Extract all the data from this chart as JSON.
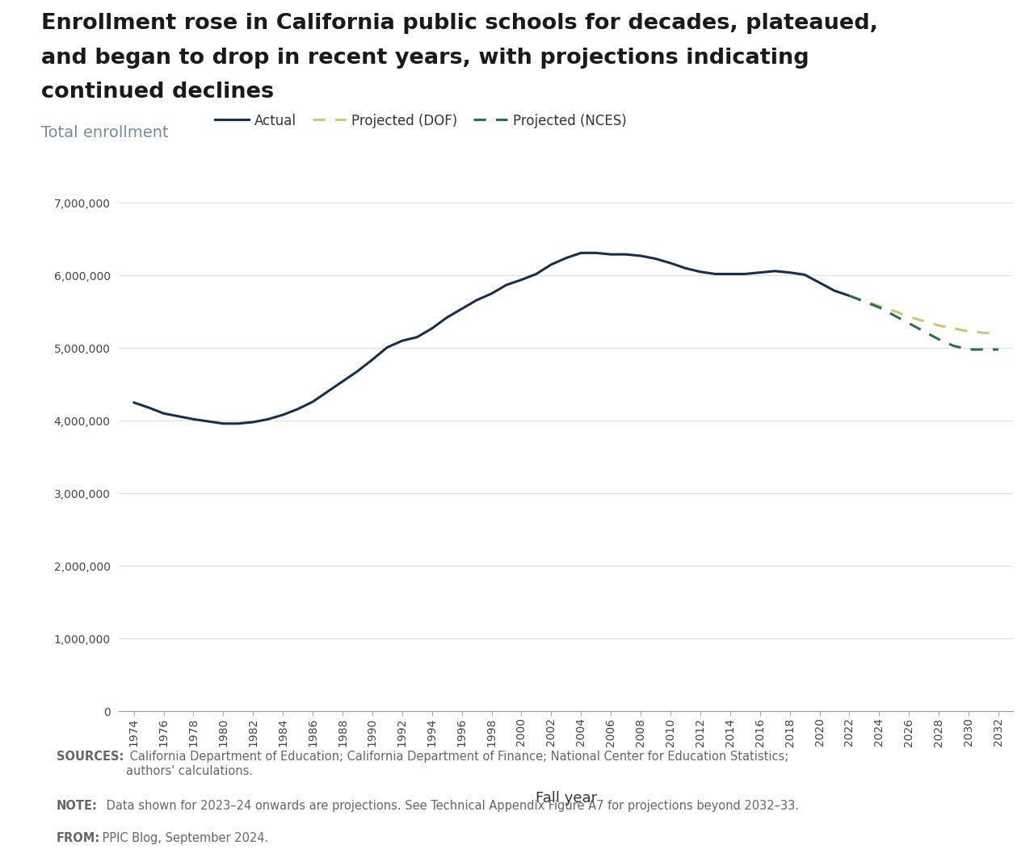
{
  "title_line1": "Enrollment rose in California public schools for decades, plateaued,",
  "title_line2": "and began to drop in recent years, with projections indicating",
  "title_line3": "continued declines",
  "subtitle": "Total enrollment",
  "xlabel": "Fall year",
  "title_color": "#1a1a1a",
  "subtitle_color": "#7a8a99",
  "background_color": "#ffffff",
  "footer_bg_color": "#e8e8e8",
  "actual_color": "#1a2e4a",
  "dof_color": "#c8c87a",
  "nces_color": "#2d6e4e",
  "actual_years": [
    1974,
    1975,
    1976,
    1977,
    1978,
    1979,
    1980,
    1981,
    1982,
    1983,
    1984,
    1985,
    1986,
    1987,
    1988,
    1989,
    1990,
    1991,
    1992,
    1993,
    1994,
    1995,
    1996,
    1997,
    1998,
    1999,
    2000,
    2001,
    2002,
    2003,
    2004,
    2005,
    2006,
    2007,
    2008,
    2009,
    2010,
    2011,
    2012,
    2013,
    2014,
    2015,
    2016,
    2017,
    2018,
    2019,
    2020,
    2021,
    2022
  ],
  "actual_values": [
    4250000,
    4180000,
    4100000,
    4060000,
    4020000,
    3990000,
    3960000,
    3960000,
    3980000,
    4020000,
    4080000,
    4160000,
    4260000,
    4400000,
    4540000,
    4680000,
    4840000,
    5010000,
    5100000,
    5150000,
    5270000,
    5420000,
    5540000,
    5660000,
    5750000,
    5870000,
    5940000,
    6020000,
    6150000,
    6240000,
    6310000,
    6310000,
    6290000,
    6290000,
    6270000,
    6230000,
    6170000,
    6100000,
    6050000,
    6020000,
    6020000,
    6020000,
    6040000,
    6060000,
    6040000,
    6010000,
    5900000,
    5790000,
    5720000
  ],
  "dof_years": [
    2022,
    2023,
    2024,
    2025,
    2026,
    2027,
    2028,
    2029,
    2030,
    2031,
    2032
  ],
  "dof_values": [
    5720000,
    5650000,
    5580000,
    5510000,
    5430000,
    5370000,
    5310000,
    5270000,
    5230000,
    5210000,
    5200000
  ],
  "nces_years": [
    2022,
    2023,
    2024,
    2025,
    2026,
    2027,
    2028,
    2029,
    2030,
    2031,
    2032
  ],
  "nces_values": [
    5720000,
    5640000,
    5560000,
    5450000,
    5340000,
    5230000,
    5120000,
    5030000,
    4980000,
    4980000,
    4980000
  ],
  "yticks": [
    0,
    1000000,
    2000000,
    3000000,
    4000000,
    5000000,
    6000000,
    7000000
  ],
  "ylim": [
    0,
    7300000
  ],
  "xticks": [
    1974,
    1976,
    1978,
    1980,
    1982,
    1984,
    1986,
    1988,
    1990,
    1992,
    1994,
    1996,
    1998,
    2000,
    2002,
    2004,
    2006,
    2008,
    2010,
    2012,
    2014,
    2016,
    2018,
    2020,
    2022,
    2024,
    2026,
    2028,
    2030,
    2032
  ],
  "sources_bold": "SOURCES:",
  "sources_text": " California Department of Education; California Department of Finance; National Center for Education Statistics;\nauthors' calculations.",
  "note_bold": "NOTE:",
  "note_text": " Data shown for 2023–24 onwards are projections. See Technical Appendix Figure A7 for projections beyond 2032–33.",
  "from_bold": "FROM:",
  "from_text": " PPIC Blog, September 2024.",
  "footer_text_color": "#666666",
  "footer_fontsize": 10.5
}
